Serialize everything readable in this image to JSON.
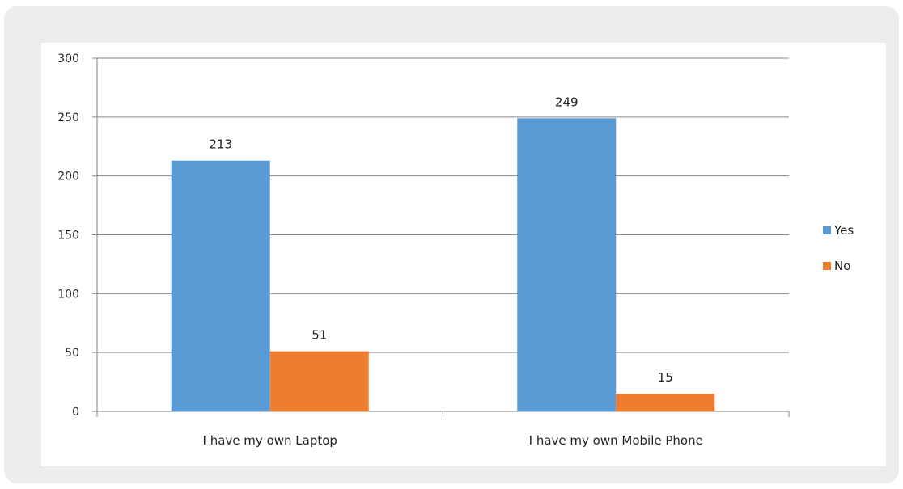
{
  "chart_data": {
    "type": "bar",
    "categories": [
      "I have my own Laptop",
      "I have my own Mobile Phone"
    ],
    "series": [
      {
        "name": "Yes",
        "values": [
          213,
          249
        ],
        "color": "#5b9bd5"
      },
      {
        "name": "No",
        "values": [
          51,
          15
        ],
        "color": "#ed7d31"
      }
    ],
    "ylim": [
      0,
      300
    ],
    "yticks": [
      0,
      50,
      100,
      150,
      200,
      250,
      300
    ],
    "grid": true,
    "legend_position": "right",
    "data_labels": true
  }
}
